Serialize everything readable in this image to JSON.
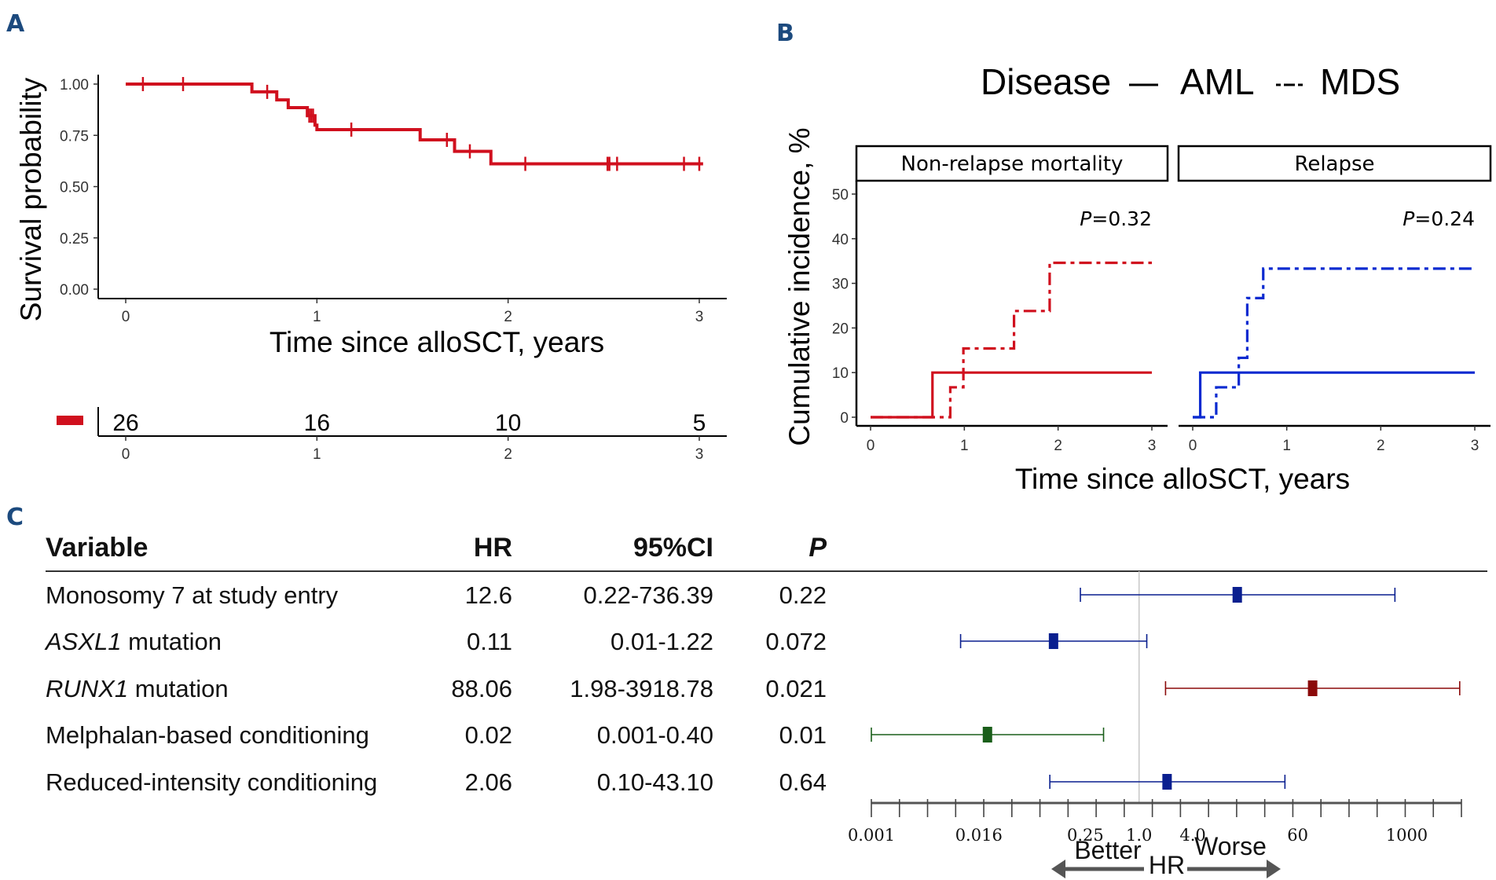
{
  "panel_labels": {
    "a": "A",
    "b": "B",
    "c": "C"
  },
  "chart_data": [
    {
      "type": "line",
      "subtype": "kaplan-meier",
      "panel": "A",
      "title": "",
      "xlabel": "Time since alloSCT, years",
      "ylabel": "Survival probability",
      "xlim": [
        0,
        3
      ],
      "ylim": [
        0,
        1
      ],
      "xticks": [
        "0",
        "1",
        "2",
        "3"
      ],
      "yticks": [
        "0.00",
        "0.25",
        "0.50",
        "0.75",
        "1.00"
      ],
      "color": "#d0101e",
      "steps": [
        {
          "x": 0,
          "y": 1.0
        },
        {
          "x": 0.66,
          "y": 0.962
        },
        {
          "x": 0.79,
          "y": 0.923
        },
        {
          "x": 0.85,
          "y": 0.885
        },
        {
          "x": 0.95,
          "y": 0.846
        },
        {
          "x": 0.99,
          "y": 0.8
        },
        {
          "x": 1.0,
          "y": 0.778
        },
        {
          "x": 1.54,
          "y": 0.728
        },
        {
          "x": 1.72,
          "y": 0.672
        },
        {
          "x": 1.91,
          "y": 0.611
        }
      ],
      "end_x": 3.02,
      "censor_times": [
        0.09,
        0.3,
        0.74,
        0.96,
        0.97,
        0.98,
        1.18,
        1.68,
        1.8,
        2.09,
        2.52,
        2.53,
        2.57,
        2.92,
        3.0
      ],
      "risk_table": {
        "times": [
          "0",
          "1",
          "2",
          "3"
        ],
        "at_risk": [
          "26",
          "16",
          "10",
          "5"
        ]
      }
    },
    {
      "type": "line",
      "subtype": "cumulative-incidence",
      "panel": "B",
      "legend_title": "Disease",
      "legend": [
        {
          "name": "AML",
          "style": "solid"
        },
        {
          "name": "MDS",
          "style": "dashdot"
        }
      ],
      "legend_placement": "top",
      "xlabel": "Time since alloSCT, years",
      "ylabel": "Cumulative incidence, %",
      "xlim": [
        0,
        3
      ],
      "ylim": [
        0,
        50
      ],
      "xticks": [
        "0",
        "1",
        "2",
        "3"
      ],
      "yticks": [
        "0",
        "10",
        "20",
        "30",
        "40",
        "50"
      ],
      "facets": [
        {
          "title": "Non-relapse mortality",
          "p_label": "P",
          "p_value": "=0.32",
          "color": "#d0101e",
          "series": [
            {
              "name": "AML",
              "steps": [
                {
                  "x": 0,
                  "y": 0
                },
                {
                  "x": 0.66,
                  "y": 10
                }
              ],
              "end_x": 3
            },
            {
              "name": "MDS",
              "steps": [
                {
                  "x": 0,
                  "y": 0
                },
                {
                  "x": 0.85,
                  "y": 6.7
                },
                {
                  "x": 0.99,
                  "y": 15.4
                },
                {
                  "x": 1.53,
                  "y": 23.8
                },
                {
                  "x": 1.91,
                  "y": 34.6
                }
              ],
              "end_x": 3
            }
          ]
        },
        {
          "title": "Relapse",
          "p_label": "P",
          "p_value": "=0.24",
          "color": "#0a2ad0",
          "series": [
            {
              "name": "AML",
              "steps": [
                {
                  "x": 0,
                  "y": 0
                },
                {
                  "x": 0.08,
                  "y": 10
                }
              ],
              "end_x": 3
            },
            {
              "name": "MDS",
              "steps": [
                {
                  "x": 0,
                  "y": 0
                },
                {
                  "x": 0.25,
                  "y": 6.7
                },
                {
                  "x": 0.49,
                  "y": 13.3
                },
                {
                  "x": 0.58,
                  "y": 26.7
                },
                {
                  "x": 0.75,
                  "y": 33.3
                }
              ],
              "end_x": 3
            }
          ]
        }
      ]
    },
    {
      "type": "forest",
      "panel": "C",
      "columns": [
        "Variable",
        "HR",
        "95%CI",
        "P"
      ],
      "rows": [
        {
          "variable": "Monosomy 7 at study entry",
          "italic_part": "",
          "hr": 12.6,
          "hr_text": "12.6",
          "ci": "0.22-736.39",
          "lo": 0.22,
          "hi": 736.39,
          "p": "0.22",
          "color": "#0a1f8f"
        },
        {
          "variable": " mutation",
          "italic_part": "ASXL1",
          "hr": 0.11,
          "hr_text": "0.11",
          "ci": "0.01-1.22",
          "lo": 0.01,
          "hi": 1.22,
          "p": "0.072",
          "color": "#0a1f8f"
        },
        {
          "variable": " mutation",
          "italic_part": "RUNX1",
          "hr": 88.06,
          "hr_text": "88.06",
          "ci": "1.98-3918.78",
          "lo": 1.98,
          "hi": 3918.78,
          "p": "0.021",
          "color": "#8b0a0a"
        },
        {
          "variable": "Melphalan-based conditioning",
          "italic_part": "",
          "hr": 0.02,
          "hr_text": "0.02",
          "ci": "0.001-0.40",
          "lo": 0.001,
          "hi": 0.4,
          "p": "0.01",
          "color": "#1a5e1a"
        },
        {
          "variable": "Reduced-intensity conditioning",
          "italic_part": "",
          "hr": 2.06,
          "hr_text": "2.06",
          "ci": "0.10-43.10",
          "lo": 0.1,
          "hi": 43.1,
          "p": "0.64",
          "color": "#0a1f8f"
        }
      ],
      "xscale": "log2",
      "xlim": [
        0.001,
        4096
      ],
      "xtick_labels": [
        {
          "v": 0.001,
          "t": "0.001"
        },
        {
          "v": 0.016,
          "t": "0.016"
        },
        {
          "v": 0.25,
          "t": "0.25"
        },
        {
          "v": 1.0,
          "t": "1.0"
        },
        {
          "v": 4.0,
          "t": "4.0"
        },
        {
          "v": 60,
          "t": "60"
        },
        {
          "v": 1000,
          "t": "1000"
        }
      ],
      "reference_line": 1.0,
      "xlabel": "HR",
      "left_direction": "Better",
      "right_direction": "Worse"
    }
  ]
}
